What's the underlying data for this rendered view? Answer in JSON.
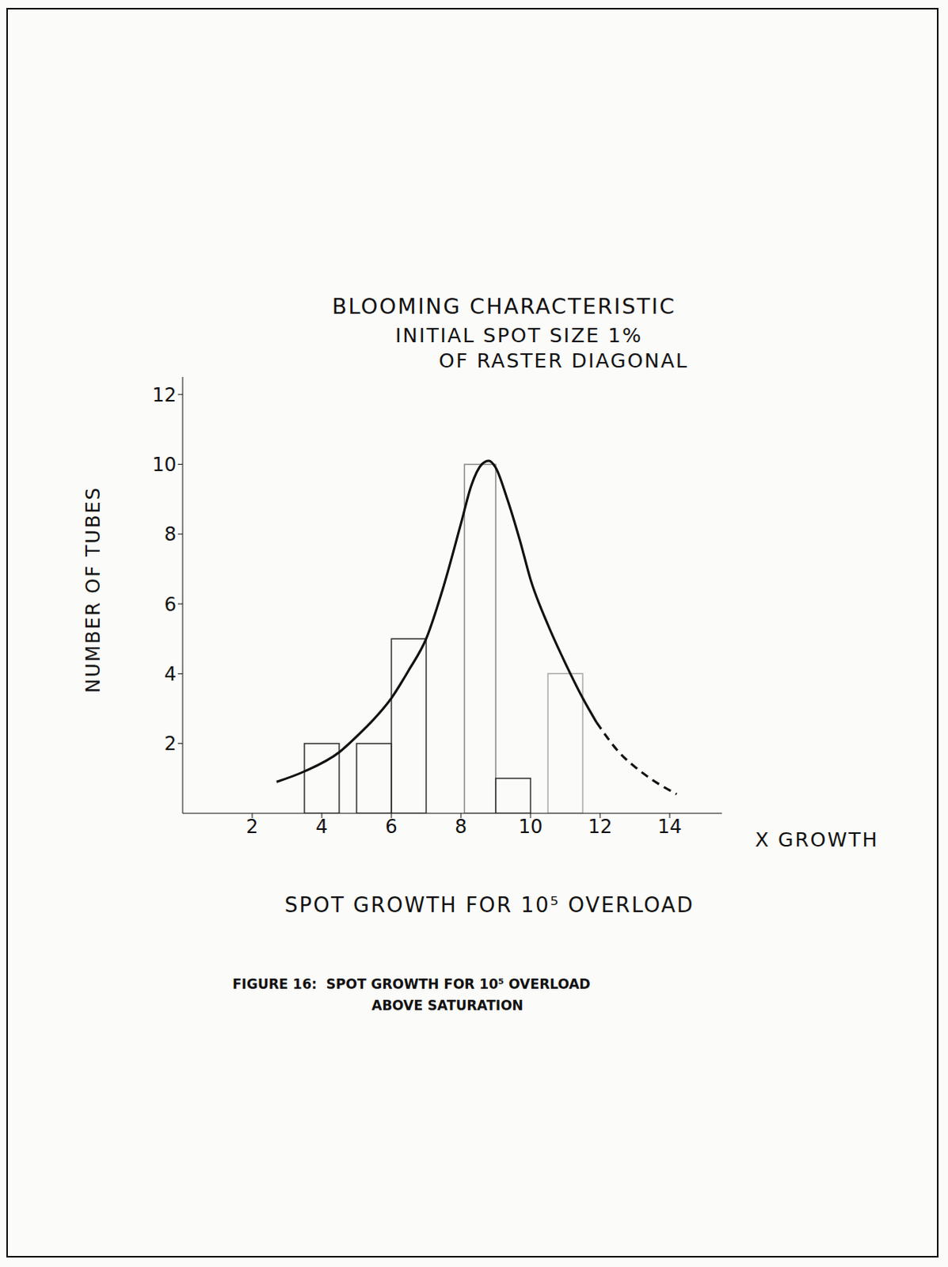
{
  "chart_data": {
    "type": "histogram",
    "title": "BLOOMING CHARACTERISTIC",
    "subtitle": [
      "INITIAL SPOT SIZE 1%",
      "OF RASTER DIAGONAL"
    ],
    "x_label": "SPOT GROWTH FOR 10⁵ OVERLOAD",
    "y_label": "NUMBER OF TUBES",
    "annotations": [
      "X GROWTH"
    ],
    "caption": [
      "FIGURE 16:  SPOT GROWTH FOR 10⁵ OVERLOAD",
      "ABOVE SATURATION"
    ],
    "xlim": [
      0,
      15.5
    ],
    "xticks": [
      2,
      4,
      6,
      8,
      10,
      12,
      14
    ],
    "ylim": [
      0,
      12.5
    ],
    "yticks": [
      2,
      4,
      6,
      8,
      10,
      12
    ],
    "grid": false,
    "series": [
      {
        "type": "bar",
        "colors": [
          "#333333",
          "#333333",
          "#333333",
          "#888888",
          "#333333",
          "#aaaaaa"
        ],
        "bin_start": [
          3.5,
          5,
          6,
          8.1,
          9,
          10.5
        ],
        "bin_end": [
          4.5,
          6,
          7,
          9,
          10,
          11.5
        ],
        "values": [
          2,
          2,
          5,
          10,
          1,
          4
        ]
      },
      {
        "type": "line",
        "color": "#111111",
        "line_style": "solid",
        "x": [
          2.7,
          3.5,
          4.5,
          5,
          5.5,
          6,
          6.5,
          7,
          7.5,
          8,
          8.3,
          8.6,
          8.8,
          9,
          9.3,
          9.7,
          10,
          10.5,
          11,
          11.5,
          11.9
        ],
        "values": [
          0.9,
          1.2,
          1.75,
          2.2,
          2.7,
          3.3,
          4.1,
          5.0,
          6.5,
          8.3,
          9.4,
          10.0,
          10.1,
          9.9,
          9.1,
          7.8,
          6.7,
          5.4,
          4.3,
          3.3,
          2.6
        ]
      },
      {
        "type": "line",
        "color": "#111111",
        "line_style": "dashed",
        "x": [
          11.9,
          12.5,
          13.3,
          14.2
        ],
        "values": [
          2.6,
          1.8,
          1.1,
          0.55
        ]
      }
    ]
  }
}
